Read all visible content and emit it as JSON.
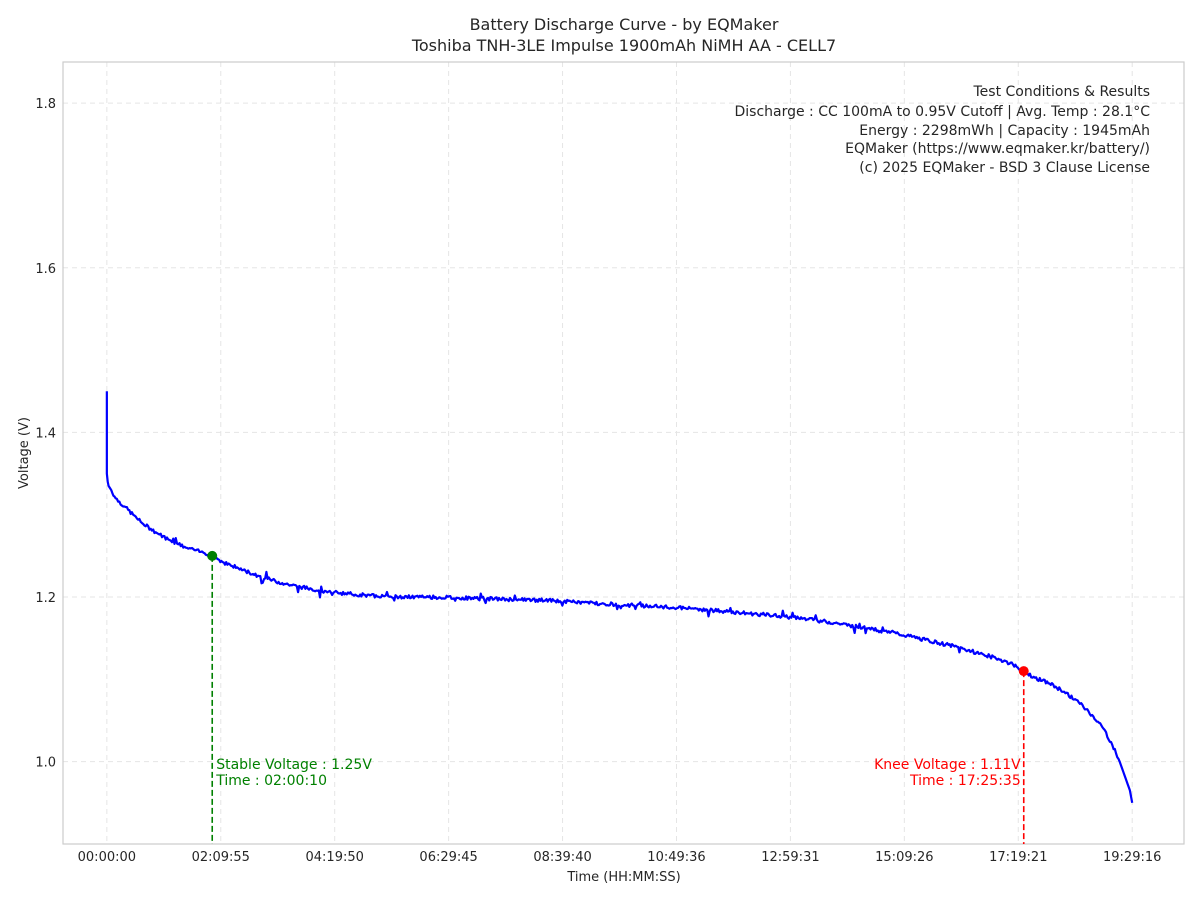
{
  "chart_data": {
    "type": "line",
    "title": "Battery Discharge Curve - by EQMaker",
    "subtitle": "Toshiba TNH-3LE Impulse 1900mAh NiMH AA - CELL7",
    "xlabel": "Time (HH:MM:SS)",
    "ylabel": "Voltage (V)",
    "xlim_seconds": [
      -3000,
      73700
    ],
    "ylim": [
      0.9,
      1.85
    ],
    "grid": true,
    "x_ticks_seconds": [
      0,
      7795,
      15590,
      23385,
      31180,
      38976,
      46771,
      54566,
      62361,
      70156
    ],
    "x_tick_labels": [
      "00:00:00",
      "02:09:55",
      "04:19:50",
      "06:29:45",
      "08:39:40",
      "10:49:36",
      "12:59:31",
      "15:09:26",
      "17:19:21",
      "19:29:16"
    ],
    "y_ticks": [
      1.0,
      1.2,
      1.4,
      1.6,
      1.8
    ],
    "y_tick_labels": [
      "1.0",
      "1.2",
      "1.4",
      "1.6",
      "1.8"
    ],
    "series": [
      {
        "name": "Voltage",
        "color": "#0000ff",
        "x_seconds": [
          0,
          0,
          60,
          120,
          300,
          600,
          1200,
          1800,
          2400,
          3000,
          3600,
          4200,
          4800,
          5400,
          6000,
          6600,
          7210,
          8000,
          9000,
          10000,
          11000,
          12000,
          13000,
          14000,
          15000,
          16000,
          17000,
          18000,
          19000,
          20000,
          22000,
          24000,
          26000,
          28000,
          30000,
          32000,
          34000,
          36000,
          38000,
          40000,
          42000,
          44000,
          46000,
          48000,
          50000,
          52000,
          54000,
          56000,
          58000,
          60000,
          61000,
          62000,
          62735,
          63500,
          64500,
          65500,
          66500,
          67500,
          68200,
          68800,
          69300,
          69700,
          70000,
          70156
        ],
        "values": [
          1.45,
          1.35,
          1.34,
          1.335,
          1.33,
          1.32,
          1.31,
          1.3,
          1.29,
          1.283,
          1.276,
          1.27,
          1.265,
          1.26,
          1.257,
          1.254,
          1.25,
          1.242,
          1.235,
          1.228,
          1.222,
          1.217,
          1.213,
          1.21,
          1.207,
          1.205,
          1.203,
          1.202,
          1.201,
          1.2,
          1.2,
          1.199,
          1.198,
          1.197,
          1.196,
          1.194,
          1.192,
          1.19,
          1.188,
          1.186,
          1.183,
          1.18,
          1.177,
          1.173,
          1.168,
          1.162,
          1.156,
          1.148,
          1.14,
          1.13,
          1.125,
          1.118,
          1.11,
          1.102,
          1.095,
          1.085,
          1.072,
          1.055,
          1.04,
          1.02,
          1.0,
          0.98,
          0.965,
          0.95
        ]
      }
    ],
    "markers": [
      {
        "name": "stable",
        "x_seconds": 7210,
        "y": 1.25,
        "color": "#008000",
        "line1": "Stable Voltage : 1.25V",
        "line2": "Time : 02:00:10",
        "align": "left"
      },
      {
        "name": "knee",
        "x_seconds": 62735,
        "y": 1.11,
        "color": "#ff0000",
        "line1": "Knee Voltage : 1.11V",
        "line2": "Time : 17:25:35",
        "align": "right"
      }
    ]
  },
  "info_box": {
    "lines": [
      "Test Conditions & Results",
      "Discharge : CC 100mA to 0.95V Cutoff | Avg. Temp : 28.1°C",
      "Energy : 2298mWh | Capacity : 1945mAh",
      "EQMaker (https://www.eqmaker.kr/battery/)",
      "(c) 2025 EQMaker - BSD 3 Clause License"
    ]
  },
  "colors": {
    "line": "#0000ff",
    "stable": "#008000",
    "knee": "#ff0000",
    "grid": "#e5e5e5",
    "frame": "#cccccc"
  }
}
